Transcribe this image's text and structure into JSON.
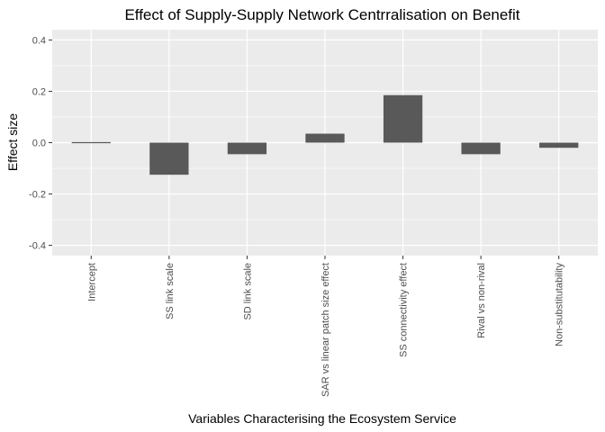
{
  "chart_data": {
    "type": "bar",
    "title": "Effect of Supply-Supply Network Centrralisation on Benefit",
    "xlabel": "Variables Characterising the Ecosystem Service",
    "ylabel": "Effect size",
    "categories": [
      "Intercept",
      "SS link scale",
      "SD link scale",
      "SAR vs linear patch size effect",
      "SS connectivity effect",
      "Rival vs non-rival",
      "Non-substitutability"
    ],
    "values": [
      0.0,
      -0.125,
      -0.045,
      0.035,
      0.185,
      -0.045,
      -0.02
    ],
    "ylim": [
      -0.44,
      0.44
    ],
    "yticks": [
      -0.4,
      -0.2,
      0.0,
      0.2,
      0.4
    ],
    "ytick_labels": [
      "-0.4",
      "-0.2",
      "0.0",
      "0.2",
      "0.4"
    ],
    "grid": true,
    "colors": {
      "panel": "#ebebeb",
      "grid": "#ffffff",
      "bar": "#595959",
      "tick": "#333333"
    }
  }
}
